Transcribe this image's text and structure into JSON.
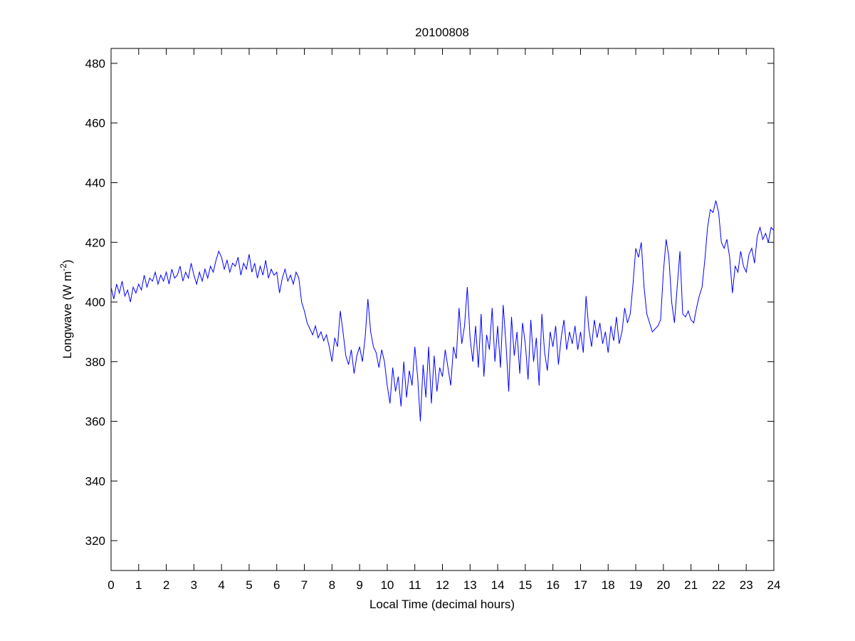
{
  "chart_data": {
    "type": "line",
    "title": "20100808",
    "xlabel": "Local Time (decimal hours)",
    "ylabel": [
      "Longwave (W m",
      "-2",
      ")"
    ],
    "xlim": [
      0,
      24
    ],
    "ylim": [
      310,
      485
    ],
    "xticks": [
      0,
      1,
      2,
      3,
      4,
      5,
      6,
      7,
      8,
      9,
      10,
      11,
      12,
      13,
      14,
      15,
      16,
      17,
      18,
      19,
      20,
      21,
      22,
      23,
      24
    ],
    "yticks": [
      320,
      340,
      360,
      380,
      400,
      420,
      440,
      460,
      480
    ],
    "grid": false,
    "x": [
      0,
      0.1,
      0.2,
      0.3,
      0.4,
      0.5,
      0.6,
      0.7,
      0.8,
      0.9,
      1,
      1.1,
      1.2,
      1.3,
      1.4,
      1.5,
      1.6,
      1.7,
      1.8,
      1.9,
      2,
      2.1,
      2.2,
      2.3,
      2.4,
      2.5,
      2.6,
      2.7,
      2.8,
      2.9,
      3,
      3.1,
      3.2,
      3.3,
      3.4,
      3.5,
      3.6,
      3.7,
      3.8,
      3.9,
      4,
      4.1,
      4.2,
      4.3,
      4.4,
      4.5,
      4.6,
      4.7,
      4.8,
      4.9,
      5,
      5.1,
      5.2,
      5.3,
      5.4,
      5.5,
      5.6,
      5.7,
      5.8,
      5.9,
      6,
      6.1,
      6.2,
      6.3,
      6.4,
      6.5,
      6.6,
      6.7,
      6.8,
      6.9,
      7,
      7.1,
      7.2,
      7.3,
      7.4,
      7.5,
      7.6,
      7.7,
      7.8,
      7.9,
      8,
      8.1,
      8.2,
      8.3,
      8.4,
      8.5,
      8.6,
      8.7,
      8.8,
      8.9,
      9,
      9.1,
      9.2,
      9.3,
      9.4,
      9.5,
      9.6,
      9.7,
      9.8,
      9.9,
      10,
      10.1,
      10.2,
      10.3,
      10.4,
      10.5,
      10.6,
      10.7,
      10.8,
      10.9,
      11,
      11.1,
      11.2,
      11.3,
      11.4,
      11.5,
      11.6,
      11.7,
      11.8,
      11.9,
      12,
      12.1,
      12.2,
      12.3,
      12.4,
      12.5,
      12.6,
      12.7,
      12.8,
      12.9,
      13,
      13.1,
      13.2,
      13.3,
      13.4,
      13.5,
      13.6,
      13.7,
      13.8,
      13.9,
      14,
      14.1,
      14.2,
      14.3,
      14.4,
      14.5,
      14.6,
      14.7,
      14.8,
      14.9,
      15,
      15.1,
      15.2,
      15.3,
      15.4,
      15.5,
      15.6,
      15.7,
      15.8,
      15.9,
      16,
      16.1,
      16.2,
      16.3,
      16.4,
      16.5,
      16.6,
      16.7,
      16.8,
      16.9,
      17,
      17.1,
      17.2,
      17.3,
      17.4,
      17.5,
      17.6,
      17.7,
      17.8,
      17.9,
      18,
      18.1,
      18.2,
      18.3,
      18.4,
      18.5,
      18.6,
      18.7,
      18.8,
      18.9,
      19,
      19.1,
      19.2,
      19.3,
      19.4,
      19.5,
      19.6,
      19.7,
      19.8,
      19.9,
      20,
      20.1,
      20.2,
      20.3,
      20.4,
      20.5,
      20.6,
      20.7,
      20.8,
      20.9,
      21,
      21.1,
      21.2,
      21.3,
      21.4,
      21.5,
      21.6,
      21.7,
      21.8,
      21.9,
      22,
      22.1,
      22.2,
      22.3,
      22.4,
      22.5,
      22.6,
      22.7,
      22.8,
      22.9,
      23,
      23.1,
      23.2,
      23.3,
      23.4,
      23.5,
      23.6,
      23.7,
      23.8,
      23.9,
      24
    ],
    "series": [
      {
        "color": "#0000ff",
        "values": [
          405,
          401,
          406,
          403,
          407,
          402,
          404,
          400,
          405,
          403,
          406,
          404,
          409,
          405,
          408,
          407,
          410,
          406,
          409,
          407,
          410,
          406,
          411,
          408,
          409,
          412,
          407,
          410,
          408,
          413,
          409,
          406,
          410,
          407,
          411,
          408,
          412,
          410,
          414,
          417,
          415,
          411,
          414,
          410,
          413,
          412,
          415,
          409,
          413,
          411,
          416,
          410,
          413,
          408,
          412,
          409,
          414,
          408,
          411,
          409,
          410,
          403,
          408,
          411,
          407,
          409,
          406,
          410,
          408,
          400,
          397,
          393,
          391,
          389,
          392,
          388,
          390,
          387,
          389,
          385,
          380,
          388,
          385,
          397,
          390,
          382,
          379,
          384,
          376,
          382,
          385,
          380,
          388,
          401,
          390,
          385,
          383,
          378,
          384,
          380,
          372,
          366,
          378,
          370,
          375,
          365,
          380,
          368,
          377,
          372,
          385,
          375,
          360,
          379,
          368,
          385,
          366,
          382,
          370,
          378,
          375,
          384,
          378,
          372,
          385,
          381,
          398,
          386,
          392,
          405,
          388,
          380,
          392,
          378,
          396,
          375,
          389,
          384,
          398,
          380,
          392,
          378,
          399,
          386,
          370,
          395,
          382,
          390,
          376,
          393,
          386,
          374,
          394,
          380,
          388,
          372,
          396,
          383,
          377,
          390,
          385,
          392,
          379,
          388,
          394,
          384,
          390,
          386,
          392,
          384,
          390,
          383,
          402,
          391,
          385,
          394,
          388,
          393,
          386,
          390,
          383,
          392,
          387,
          395,
          386,
          390,
          398,
          393,
          396,
          406,
          418,
          415,
          420,
          405,
          396,
          393,
          390,
          391,
          392,
          394,
          410,
          421,
          415,
          400,
          393,
          405,
          417,
          396,
          395,
          397,
          394,
          393,
          398,
          402,
          405,
          414,
          425,
          431,
          430,
          434,
          430,
          420,
          418,
          421,
          415,
          403,
          412,
          410,
          417,
          412,
          410,
          416,
          418,
          413,
          422,
          425,
          421,
          423,
          420,
          425,
          424
        ]
      }
    ]
  }
}
